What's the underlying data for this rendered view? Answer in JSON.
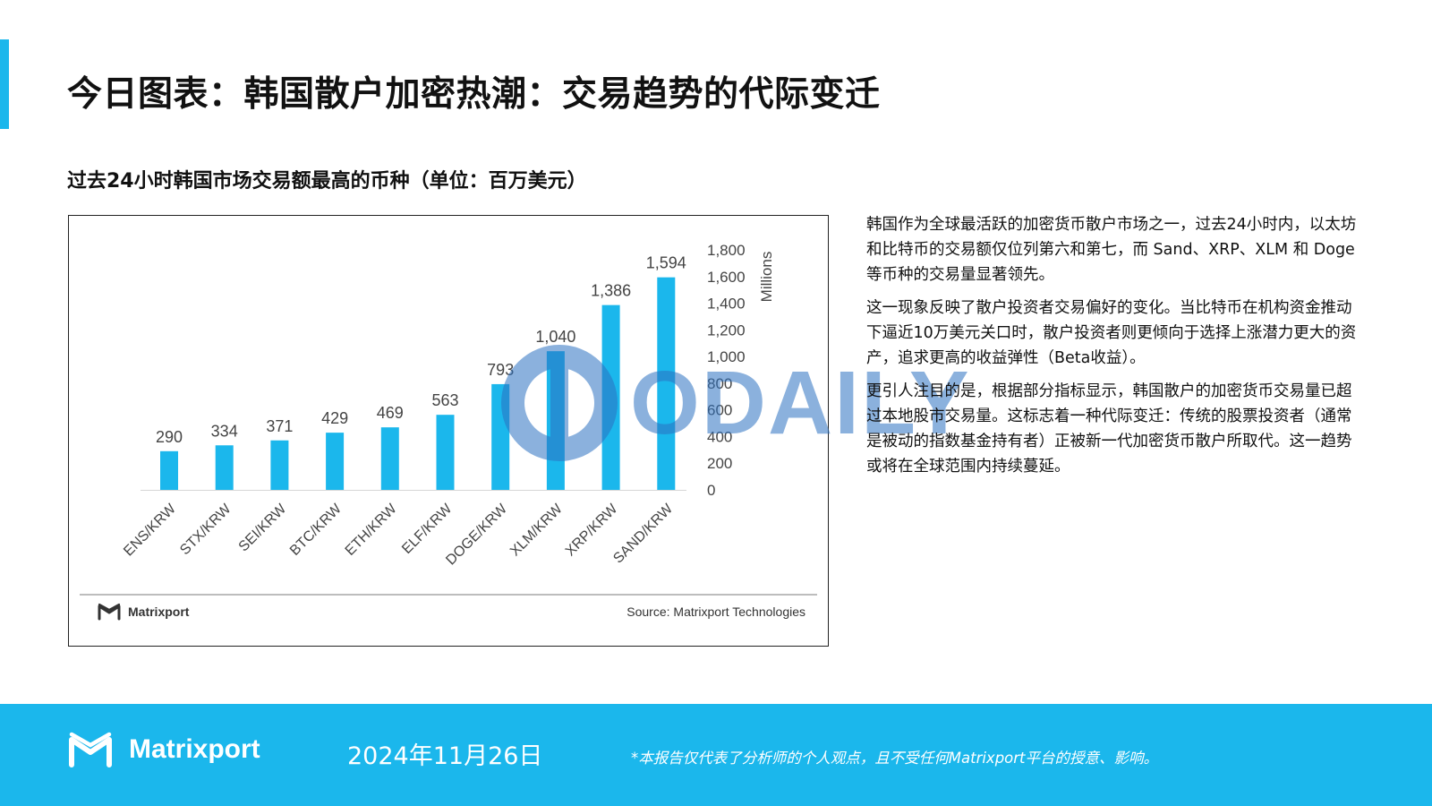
{
  "header": {
    "title": "今日图表：韩国散户加密热潮：交易趋势的代际变迁",
    "accent_color": "#1bb7ec"
  },
  "chart_section": {
    "subtitle": "过去24小时韩国市场交易额最高的币种（单位：百万美元）",
    "logo_label": "Matrixport",
    "source": "Source: Matrixport Technologies"
  },
  "chart_data": {
    "type": "bar",
    "categories": [
      "ENS/KRW",
      "STX/KRW",
      "SEI/KRW",
      "BTC/KRW",
      "ETH/KRW",
      "ELF/KRW",
      "DOGE/KRW",
      "XLM/KRW",
      "XRP/KRW",
      "SAND/KRW"
    ],
    "values": [
      290,
      334,
      371,
      429,
      469,
      563,
      793,
      1040,
      1386,
      1594
    ],
    "data_labels": [
      "290",
      "334",
      "371",
      "429",
      "469",
      "563",
      "793",
      "1,040",
      "1,386",
      "1,594"
    ],
    "ylabel": "Millions",
    "ylim": [
      0,
      1800
    ],
    "yticks": [
      0,
      200,
      400,
      600,
      800,
      1000,
      1200,
      1400,
      1600,
      1800
    ],
    "ytick_labels": [
      "0",
      "200",
      "400",
      "600",
      "800",
      "1,000",
      "1,200",
      "1,400",
      "1,600",
      "1,800"
    ],
    "y_axis_side": "right",
    "grid": false,
    "bar_color": "#1bb7ec"
  },
  "watermark": {
    "text": "ODAILY"
  },
  "description": {
    "paragraphs": [
      "韩国作为全球最活跃的加密货币散户市场之一，过去24小时内，以太坊和比特币的交易额仅位列第六和第七，而 Sand、XRP、XLM 和 Doge 等币种的交易量显著领先。",
      "这一现象反映了散户投资者交易偏好的变化。当比特币在机构资金推动下逼近10万美元关口时，散户投资者则更倾向于选择上涨潜力更大的资产，追求更高的收益弹性（Beta收益）。",
      "更引人注目的是，根据部分指标显示，韩国散户的加密货币交易量已超过本地股市交易量。这标志着一种代际变迁：传统的股票投资者（通常是被动的指数基金持有者）正被新一代加密货币散户所取代。这一趋势或将在全球范围内持续蔓延。"
    ]
  },
  "footer": {
    "logo_label": "Matrixport",
    "date": "2024年11月26日",
    "disclaimer": "*本报告仅代表了分析师的个人观点，且不受任何Matrixport平台的授意、影响。"
  }
}
